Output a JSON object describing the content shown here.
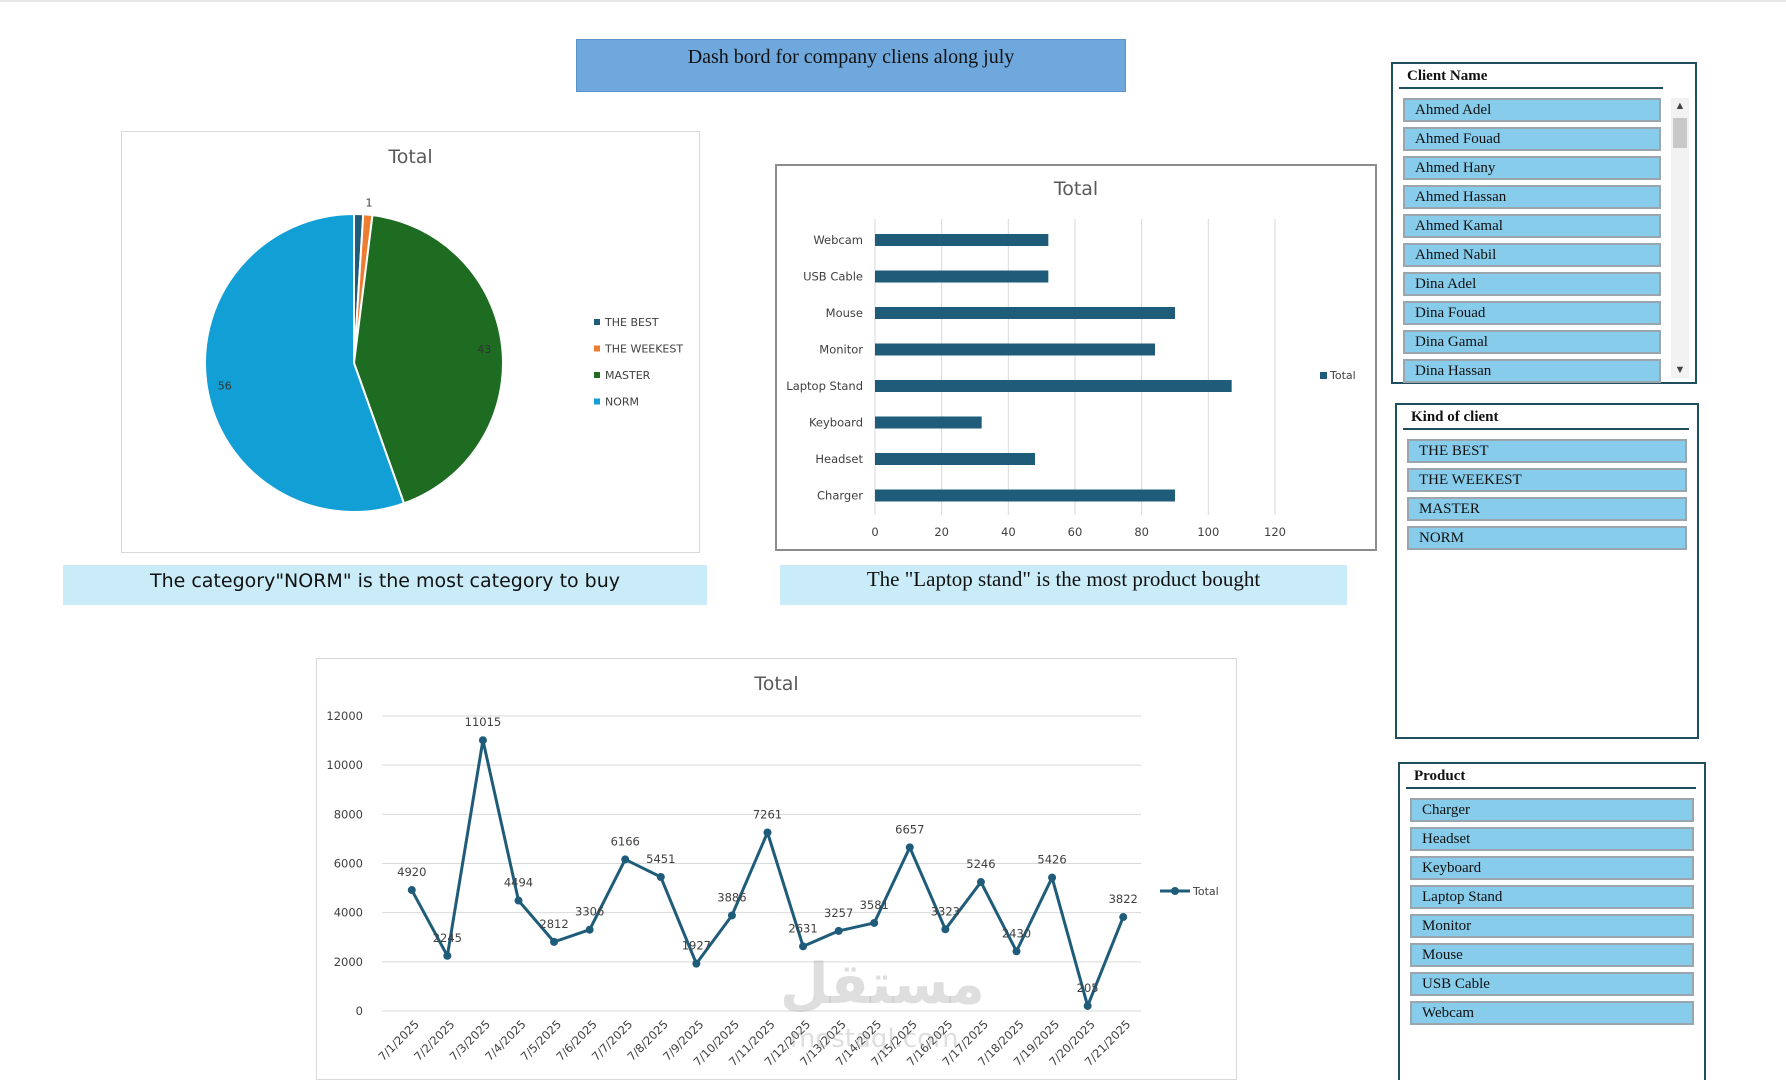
{
  "dashboard": {
    "title": "Dash bord for company cliens along july",
    "caption_category": "The category\"NORM\" is the most category to buy",
    "caption_product": "The \"Laptop stand\" is the most product bought",
    "watermark": "مستقل",
    "watermark_sub": "mostaql.com"
  },
  "chart_data": [
    {
      "type": "pie",
      "title": "Total",
      "categories": [
        "THE BEST",
        "THE WEEKEST",
        "MASTER",
        "NORM"
      ],
      "values": [
        1,
        1,
        43,
        56
      ],
      "data_labels": [
        "",
        "1",
        "43",
        "56"
      ],
      "colors": [
        "#1f5c7a",
        "#ed7d31",
        "#1e6b22",
        "#129fd6"
      ],
      "legend": "right"
    },
    {
      "type": "bar",
      "title": "Total",
      "orientation": "horizontal",
      "categories": [
        "Webcam",
        "USB Cable",
        "Mouse",
        "Monitor",
        "Laptop Stand",
        "Keyboard",
        "Headset",
        "Charger"
      ],
      "series": [
        {
          "name": "Total",
          "values": [
            52,
            52,
            90,
            84,
            107,
            32,
            48,
            90
          ]
        }
      ],
      "xlim": [
        0,
        120
      ],
      "x_ticks": [
        "0",
        "20",
        "40",
        "60",
        "80",
        "100",
        "120"
      ],
      "grid": true,
      "legend": "right",
      "color": "#1f5c7a"
    },
    {
      "type": "line",
      "title": "Total",
      "x": [
        "7/1/2025",
        "7/2/2025",
        "7/3/2025",
        "7/4/2025",
        "7/5/2025",
        "7/6/2025",
        "7/7/2025",
        "7/8/2025",
        "7/9/2025",
        "7/10/2025",
        "7/11/2025",
        "7/12/2025",
        "7/13/2025",
        "7/14/2025",
        "7/15/2025",
        "7/16/2025",
        "7/17/2025",
        "7/18/2025",
        "7/19/2025",
        "7/20/2025",
        "7/21/2025"
      ],
      "series": [
        {
          "name": "Total",
          "values": [
            4920,
            2245,
            11015,
            4494,
            2812,
            3306,
            6166,
            5451,
            1927,
            3886,
            7261,
            2631,
            3257,
            3581,
            6657,
            3323,
            5246,
            2430,
            5426,
            205,
            3822
          ]
        }
      ],
      "ylim": [
        0,
        12000
      ],
      "y_ticks": [
        "0",
        "2000",
        "4000",
        "6000",
        "8000",
        "10000",
        "12000"
      ],
      "grid": true,
      "legend": "right",
      "color": "#1f5c7a"
    }
  ],
  "slicers": {
    "client": {
      "header": "Client Name",
      "items": [
        "Ahmed Adel",
        "Ahmed Fouad",
        "Ahmed Hany",
        "Ahmed Hassan",
        "Ahmed Kamal",
        "Ahmed Nabil",
        "Dina Adel",
        "Dina Fouad",
        "Dina Gamal",
        "Dina Hassan"
      ],
      "scroll_up": "▲",
      "scroll_down": "▼"
    },
    "kind": {
      "header": "Kind of client",
      "items": [
        "THE BEST",
        "THE WEEKEST",
        "MASTER",
        "NORM"
      ]
    },
    "product": {
      "header": "Product",
      "items": [
        "Charger",
        "Headset",
        "Keyboard",
        "Laptop Stand",
        "Monitor",
        "Mouse",
        "USB Cable",
        "Webcam"
      ]
    }
  }
}
